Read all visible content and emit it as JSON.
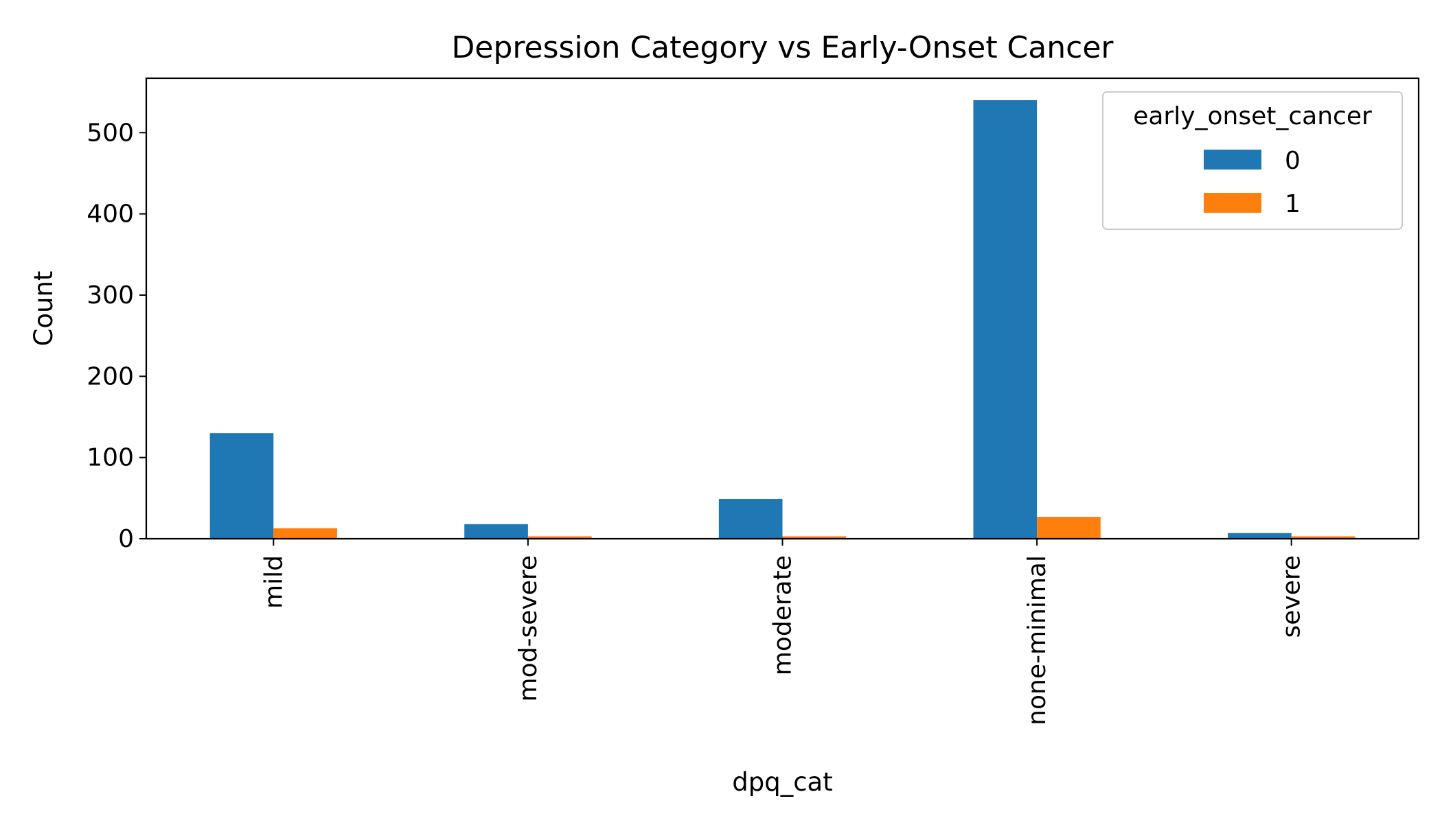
{
  "chart_data": {
    "type": "bar",
    "title": "Depression Category vs Early-Onset Cancer",
    "xlabel": "dpq_cat",
    "ylabel": "Count",
    "categories": [
      "mild",
      "mod-severe",
      "moderate",
      "none-minimal",
      "severe"
    ],
    "series": [
      {
        "name": "0",
        "values": [
          130,
          18,
          49,
          540,
          7
        ]
      },
      {
        "name": "1",
        "values": [
          13,
          3,
          3,
          27,
          3
        ]
      }
    ],
    "ylim": [
      0,
      567
    ],
    "yticks": [
      0,
      100,
      200,
      300,
      400,
      500
    ],
    "ytick_labels": [
      "0",
      "100",
      "200",
      "300",
      "400",
      "500"
    ],
    "grid": false,
    "legend": {
      "title": "early_onset_cancer",
      "position": "top-right"
    },
    "colors": {
      "0": "#1f77b4",
      "1": "#ff7f0e"
    }
  }
}
